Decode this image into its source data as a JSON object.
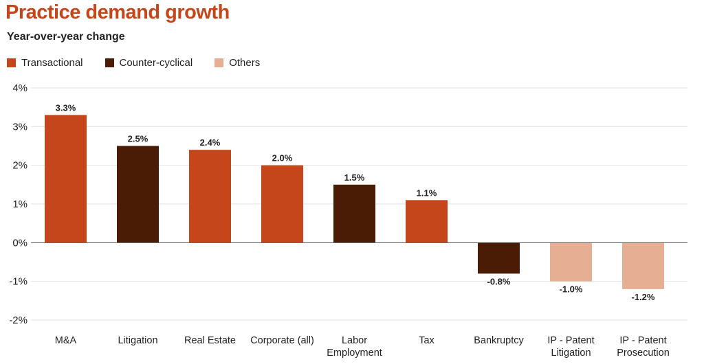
{
  "chart_data": {
    "type": "bar",
    "title": "Practice demand growth",
    "subtitle": "Year-over-year change",
    "categories": [
      "M&A",
      "Litigation",
      "Real Estate",
      "Corporate (all)",
      "Labor Employment",
      "Tax",
      "Bankruptcy",
      "IP - Patent Litigation",
      "IP - Patent Prosecution"
    ],
    "values": [
      3.3,
      2.5,
      2.4,
      2.0,
      1.5,
      1.1,
      -0.8,
      -1.0,
      -1.2
    ],
    "data_labels": [
      "3.3%",
      "2.5%",
      "2.4%",
      "2.0%",
      "1.5%",
      "1.1%",
      "-0.8%",
      "-1.0%",
      "-1.2%"
    ],
    "groups": [
      "Transactional",
      "Counter-cyclical",
      "Transactional",
      "Transactional",
      "Counter-cyclical",
      "Transactional",
      "Counter-cyclical",
      "Others",
      "Others"
    ],
    "legend": [
      {
        "name": "Transactional",
        "color": "#c4461a"
      },
      {
        "name": "Counter-cyclical",
        "color": "#4a1c05"
      },
      {
        "name": "Others",
        "color": "#e6af93"
      }
    ],
    "legend_position": "top-left",
    "ylim": [
      -2,
      4
    ],
    "yticks": [
      4,
      3,
      2,
      1,
      0,
      -1,
      -2
    ],
    "ytick_labels": [
      "4%",
      "3%",
      "2%",
      "1%",
      "0%",
      "-1%",
      "-2%"
    ],
    "grid": true,
    "xlabel": "",
    "ylabel": ""
  }
}
